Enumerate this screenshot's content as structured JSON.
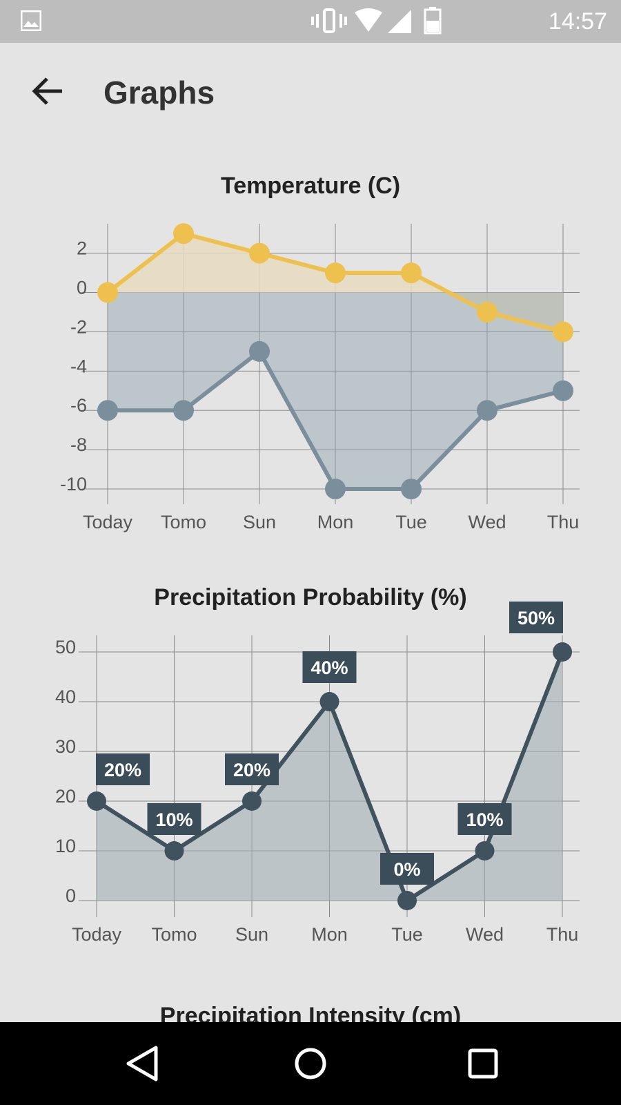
{
  "status_bar": {
    "time": "14:57",
    "icons": [
      "gallery-icon",
      "vibrate-icon",
      "wifi-icon",
      "signal-icon",
      "battery-icon"
    ]
  },
  "app_bar": {
    "title": "Graphs",
    "back_icon": "arrow-left-icon"
  },
  "colors": {
    "background": "#e4e4e4",
    "status_bar": "#bdbdbd",
    "temp_high": "#eec14f",
    "temp_low": "#7a8f9b",
    "precip": "#3f525e",
    "label_bg": "#3a4d59"
  },
  "chart_data": [
    {
      "type": "line",
      "title": "Temperature (C)",
      "categories": [
        "Today",
        "Tomo",
        "Sun",
        "Mon",
        "Tue",
        "Wed",
        "Thu"
      ],
      "series": [
        {
          "values": [
            0,
            3,
            2,
            1,
            1,
            -1,
            -2
          ]
        },
        {
          "values": [
            -6,
            -6,
            -3,
            -10,
            -10,
            -6,
            -5
          ]
        }
      ],
      "yticks": [
        2,
        0,
        -2,
        -4,
        -6,
        -8,
        -10
      ],
      "ylim": [
        -10,
        3.5
      ],
      "grid": true,
      "fill": "area"
    },
    {
      "type": "area",
      "title": "Precipitation Probability (%)",
      "categories": [
        "Today",
        "Tomo",
        "Sun",
        "Mon",
        "Tue",
        "Wed",
        "Thu"
      ],
      "series": [
        {
          "values": [
            20,
            10,
            20,
            40,
            0,
            10,
            50
          ]
        }
      ],
      "data_labels": [
        "20%",
        "10%",
        "20%",
        "40%",
        "0%",
        "10%",
        "50%"
      ],
      "yticks": [
        50,
        40,
        30,
        20,
        10,
        0
      ],
      "ylim": [
        0,
        50
      ],
      "grid": true
    }
  ],
  "next_chart_title": "Precipitation Intensity (cm)",
  "nav_bar": {
    "buttons": [
      "back-triangle-icon",
      "home-circle-icon",
      "recents-square-icon"
    ]
  }
}
